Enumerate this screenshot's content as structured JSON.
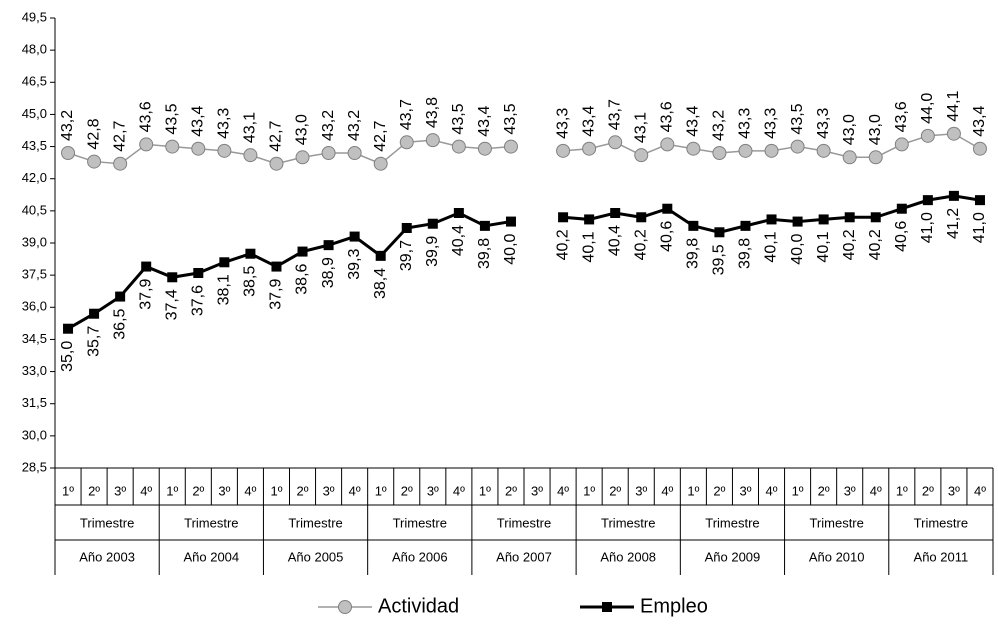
{
  "chart_data": {
    "type": "line",
    "categories": [
      "1º",
      "2º",
      "3º",
      "4º",
      "1º",
      "2º",
      "3º",
      "4º",
      "1º",
      "2º",
      "3º",
      "4º",
      "1º",
      "2º",
      "3º",
      "4º",
      "1º",
      "2º",
      "3º",
      "4º",
      "1º",
      "2º",
      "3º",
      "4º",
      "1º",
      "2º",
      "3º",
      "4º",
      "1º",
      "2º",
      "3º",
      "4º",
      "1º",
      "2º",
      "3º",
      "4º"
    ],
    "category_groups": [
      {
        "sublabel": "Trimestre",
        "label": "Año 2003"
      },
      {
        "sublabel": "Trimestre",
        "label": "Año 2004"
      },
      {
        "sublabel": "Trimestre",
        "label": "Año 2005"
      },
      {
        "sublabel": "Trimestre",
        "label": "Año 2006"
      },
      {
        "sublabel": "Trimestre",
        "label": "Año 2007"
      },
      {
        "sublabel": "Trimestre",
        "label": "Año 2008"
      },
      {
        "sublabel": "Trimestre",
        "label": "Año 2009"
      },
      {
        "sublabel": "Trimestre",
        "label": "Año 2010"
      },
      {
        "sublabel": "Trimestre",
        "label": "Año 2011"
      }
    ],
    "series": [
      {
        "name": "Actividad",
        "color": "#999999",
        "marker": "circle",
        "marker_fill": "#c0c0c0",
        "label_position": "above",
        "values": [
          43.2,
          42.8,
          42.7,
          43.6,
          43.5,
          43.4,
          43.3,
          43.1,
          42.7,
          43.0,
          43.2,
          43.2,
          42.7,
          43.7,
          43.8,
          43.5,
          43.4,
          43.5,
          null,
          43.3,
          43.4,
          43.7,
          43.1,
          43.6,
          43.4,
          43.2,
          43.3,
          43.3,
          43.5,
          43.3,
          43.0,
          43.0,
          43.6,
          44.0,
          44.1,
          43.4
        ],
        "value_labels": [
          "43,2",
          "42,8",
          "42,7",
          "43,6",
          "43,5",
          "43,4",
          "43,3",
          "43,1",
          "42,7",
          "43,0",
          "43,2",
          "43,2",
          "42,7",
          "43,7",
          "43,8",
          "43,5",
          "43,4",
          "43,5",
          null,
          "43,3",
          "43,4",
          "43,7",
          "43,1",
          "43,6",
          "43,4",
          "43,2",
          "43,3",
          "43,3",
          "43,5",
          "43,3",
          "43,0",
          "43,0",
          "43,6",
          "44,0",
          "44,1",
          "43,4"
        ]
      },
      {
        "name": "Empleo",
        "color": "#000000",
        "marker": "square",
        "marker_fill": "#000000",
        "label_position": "below",
        "values": [
          35.0,
          35.7,
          36.5,
          37.9,
          37.4,
          37.6,
          38.1,
          38.5,
          37.9,
          38.6,
          38.9,
          39.3,
          38.4,
          39.7,
          39.9,
          40.4,
          39.8,
          40.0,
          null,
          40.2,
          40.1,
          40.4,
          40.2,
          40.6,
          39.8,
          39.5,
          39.8,
          40.1,
          40.0,
          40.1,
          40.2,
          40.2,
          40.6,
          41.0,
          41.2,
          41.0
        ],
        "value_labels": [
          "35,0",
          "35,7",
          "36,5",
          "37,9",
          "37,4",
          "37,6",
          "38,1",
          "38,5",
          "37,9",
          "38,6",
          "38,9",
          "39,3",
          "38,4",
          "39,7",
          "39,9",
          "40,4",
          "39,8",
          "40,0",
          null,
          "40,2",
          "40,1",
          "40,4",
          "40,2",
          "40,6",
          "39,8",
          "39,5",
          "39,8",
          "40,1",
          "40,0",
          "40,1",
          "40,2",
          "40,2",
          "40,6",
          "41,0",
          "41,2",
          "41,0"
        ]
      }
    ],
    "ylim": [
      28.5,
      49.5
    ],
    "yticks": [
      {
        "value": 28.5,
        "label": "28,5"
      },
      {
        "value": 30,
        "label": "30,0"
      },
      {
        "value": 31.5,
        "label": "31,5"
      },
      {
        "value": 33,
        "label": "33,0"
      },
      {
        "value": 34.5,
        "label": "34,5"
      },
      {
        "value": 36,
        "label": "36,0"
      },
      {
        "value": 37.5,
        "label": "37,5"
      },
      {
        "value": 39,
        "label": "39,0"
      },
      {
        "value": 40.5,
        "label": "40,5"
      },
      {
        "value": 42,
        "label": "42,0"
      },
      {
        "value": 43.5,
        "label": "43,5"
      },
      {
        "value": 45,
        "label": "45,0"
      },
      {
        "value": 46.5,
        "label": "46,5"
      },
      {
        "value": 48,
        "label": "48,0"
      },
      {
        "value": 49.5,
        "label": "49,5"
      }
    ],
    "grid": false,
    "legend": "bottom"
  }
}
